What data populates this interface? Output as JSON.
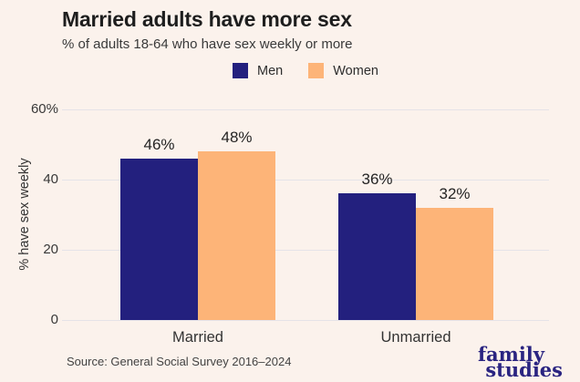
{
  "header": {
    "title": "Married adults have more sex",
    "subtitle": "% of adults 18-64 who have sex weekly or more"
  },
  "legend": [
    {
      "label": "Men",
      "color": "#23207e"
    },
    {
      "label": "Women",
      "color": "#fdb478"
    }
  ],
  "chart_data": {
    "type": "bar",
    "categories": [
      "Married",
      "Unmarried"
    ],
    "series": [
      {
        "name": "Men",
        "color": "#23207e",
        "values": [
          46,
          36
        ],
        "labels": [
          "46%",
          "36%"
        ]
      },
      {
        "name": "Women",
        "color": "#fdb478",
        "values": [
          48,
          32
        ],
        "labels": [
          "48%",
          "32%"
        ]
      }
    ],
    "title": "Married adults have more sex",
    "subtitle": "% of adults 18-64 who have sex weekly or more",
    "xlabel": "",
    "ylabel": "% have sex weekly",
    "ylim": [
      0,
      60
    ],
    "yticks": [
      {
        "value": 0,
        "label": "0"
      },
      {
        "value": 20,
        "label": "20"
      },
      {
        "value": 40,
        "label": "40"
      },
      {
        "value": 60,
        "label": "60%"
      }
    ],
    "grid": true,
    "legend_position": "top-center"
  },
  "footer": {
    "source": "Source: General Social Survey 2016–2024",
    "logo": {
      "line1": "family",
      "line2": "studies"
    }
  },
  "colors": {
    "background": "#fbf2ec",
    "men": "#23207e",
    "women": "#fdb478",
    "gridline": "#e5e3e8",
    "logo": "#2a2481"
  }
}
